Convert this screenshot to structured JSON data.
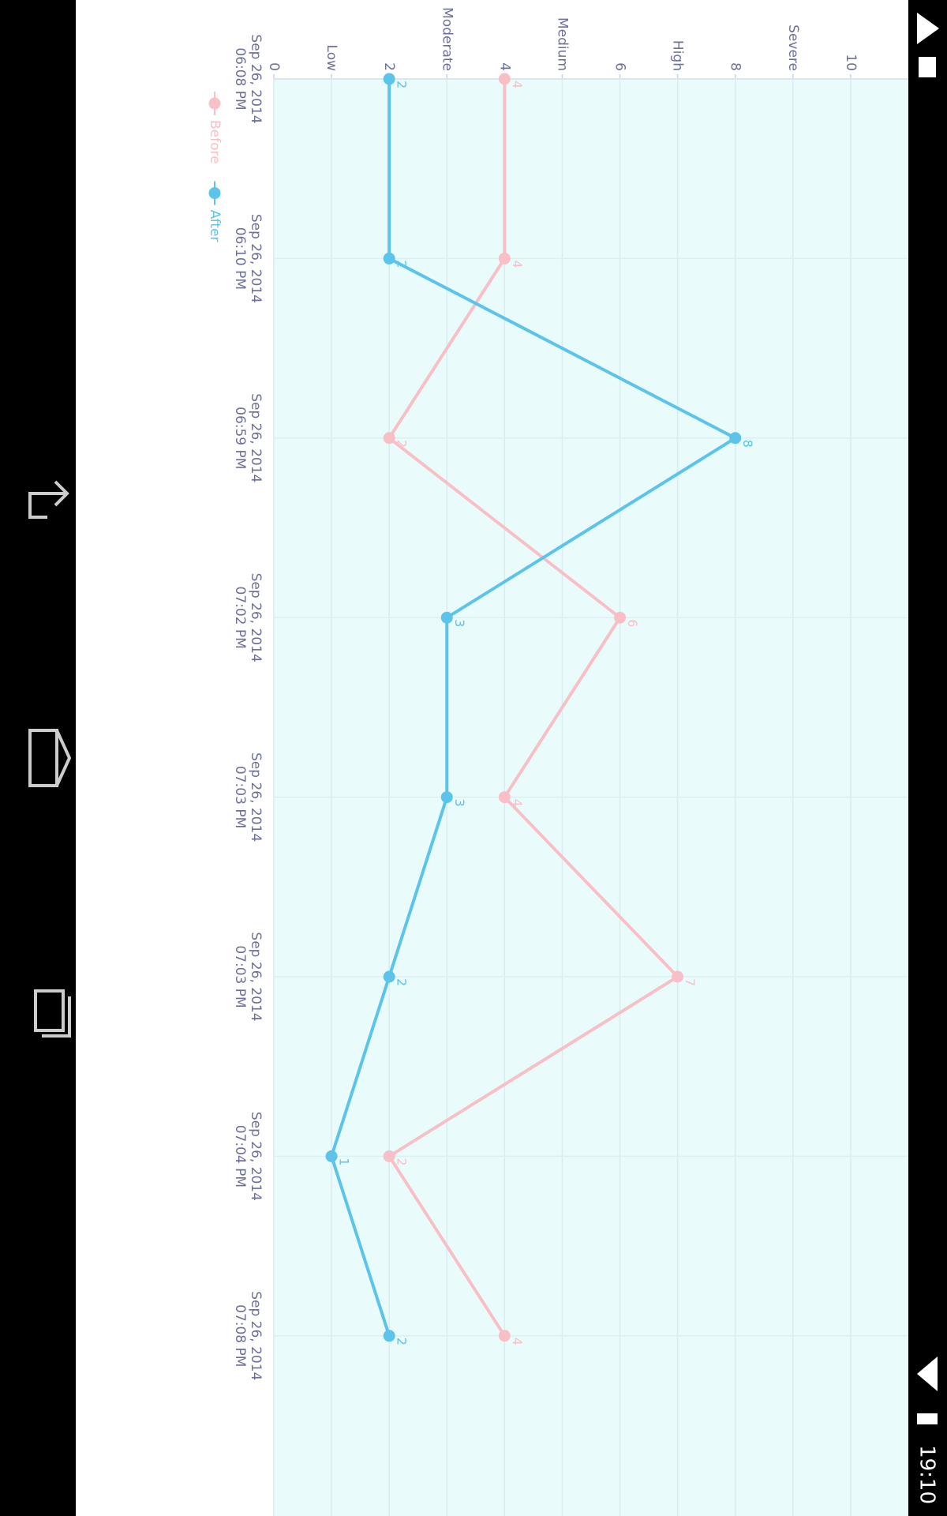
{
  "status_bar": {
    "time": "19:10"
  },
  "chart_data": {
    "type": "line",
    "categories": [
      "Sep 26, 2014\n06:08 PM",
      "Sep 26, 2014\n06:10 PM",
      "Sep 26, 2014\n06:59 PM",
      "Sep 26, 2014\n07:02 PM",
      "Sep 26, 2014\n07:03 PM",
      "Sep 26, 2014\n07:03 PM",
      "Sep 26, 2014\n07:04 PM",
      "Sep 26, 2014\n07:08 PM"
    ],
    "series": [
      {
        "name": "Before",
        "color": "#f9bfc6",
        "values": [
          4,
          4,
          2,
          6,
          4,
          7,
          2,
          4
        ]
      },
      {
        "name": "After",
        "color": "#5cc3eb",
        "values": [
          2,
          2,
          8,
          3,
          3,
          2,
          1,
          2
        ]
      }
    ],
    "ylim": [
      0,
      11
    ],
    "yticks": [
      0,
      {
        "value": 1,
        "label": "Low"
      },
      2,
      {
        "value": 3,
        "label": "Moderate"
      },
      4,
      {
        "value": 5,
        "label": "Medium"
      },
      6,
      {
        "value": 7,
        "label": "High"
      },
      8,
      {
        "value": 9,
        "label": "Severe"
      },
      10
    ],
    "grid": true,
    "legend": "bottom-left"
  }
}
